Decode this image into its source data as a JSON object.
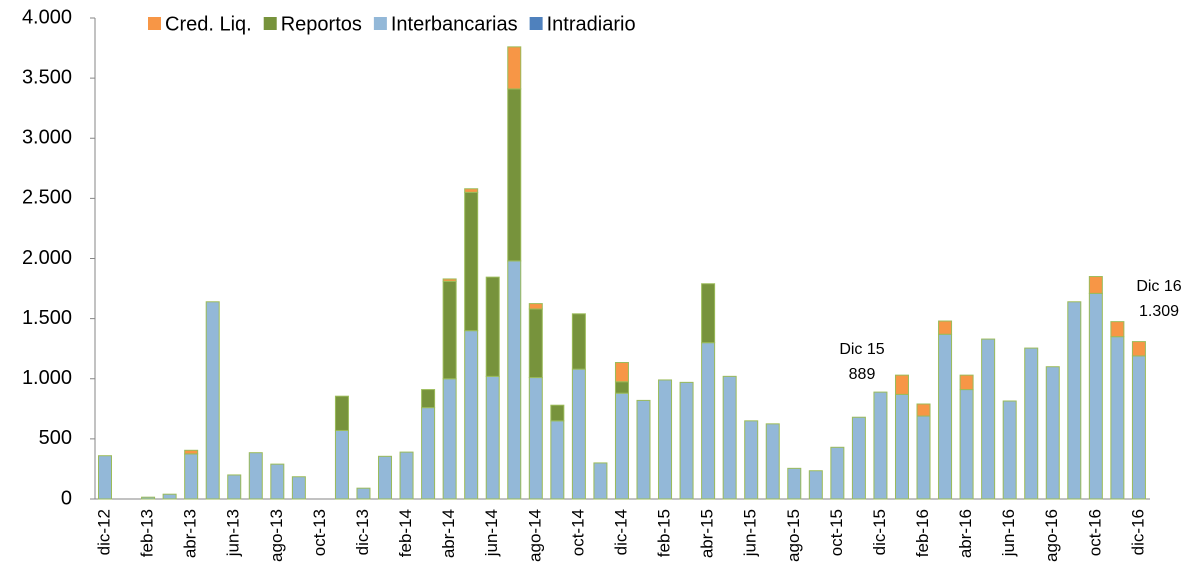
{
  "chart_data": {
    "type": "stacked_bar",
    "categories": [
      "dic-12",
      null,
      "feb-13",
      null,
      "abr-13",
      null,
      "jun-13",
      null,
      "ago-13",
      null,
      "oct-13",
      null,
      "dic-13",
      null,
      "feb-14",
      null,
      "abr-14",
      null,
      "jun-14",
      null,
      "ago-14",
      null,
      "oct-14",
      null,
      "dic-14",
      null,
      "feb-15",
      null,
      "abr-15",
      null,
      "jun-15",
      null,
      "ago-15",
      null,
      "oct-15",
      null,
      "dic-15",
      null,
      "feb-16",
      null,
      "abr-16",
      null,
      "jun-16",
      null,
      "ago-16",
      null,
      "oct-16",
      null,
      "dic-16"
    ],
    "series": [
      {
        "name": "Cred. Liq.",
        "color": "#f79646",
        "values": [
          0,
          0,
          0,
          0,
          30,
          0,
          0,
          0,
          0,
          0,
          0,
          0,
          0,
          0,
          0,
          0,
          20,
          30,
          0,
          350,
          45,
          0,
          0,
          0,
          160,
          0,
          0,
          0,
          0,
          0,
          0,
          0,
          0,
          0,
          0,
          0,
          0,
          160,
          100,
          110,
          120,
          0,
          0,
          0,
          0,
          0,
          140,
          125,
          119
        ]
      },
      {
        "name": "Reportos",
        "color": "#77933c",
        "values": [
          0,
          0,
          0,
          0,
          0,
          0,
          0,
          0,
          0,
          0,
          0,
          285,
          0,
          0,
          0,
          150,
          810,
          1150,
          825,
          1430,
          570,
          130,
          460,
          0,
          95,
          0,
          0,
          0,
          490,
          0,
          0,
          0,
          0,
          0,
          0,
          0,
          0,
          0,
          0,
          0,
          0,
          0,
          0,
          0,
          0,
          0,
          0,
          0,
          0
        ]
      },
      {
        "name": "Interbancarias",
        "color": "#93b8d8",
        "values": [
          360,
          0,
          15,
          40,
          375,
          1640,
          200,
          385,
          290,
          185,
          0,
          570,
          90,
          355,
          390,
          760,
          1000,
          1400,
          1020,
          1980,
          1010,
          650,
          1080,
          300,
          880,
          820,
          990,
          970,
          1300,
          1020,
          650,
          625,
          255,
          235,
          430,
          680,
          889,
          870,
          690,
          1370,
          910,
          1330,
          815,
          1255,
          1100,
          1640,
          1710,
          1350,
          1190
        ]
      },
      {
        "name": "Intradiario",
        "color": "#4f81bd",
        "values": [
          0,
          0,
          0,
          0,
          0,
          0,
          0,
          0,
          0,
          0,
          0,
          0,
          0,
          0,
          0,
          0,
          0,
          0,
          0,
          0,
          0,
          0,
          0,
          0,
          0,
          0,
          0,
          0,
          0,
          0,
          0,
          0,
          0,
          0,
          0,
          0,
          0,
          0,
          0,
          0,
          0,
          0,
          0,
          0,
          0,
          0,
          0,
          0,
          0
        ]
      }
    ],
    "ylim": [
      0,
      4000
    ],
    "yticks": [
      0,
      500,
      {
        "value": 1000,
        "label": "1.000"
      },
      {
        "value": 1500,
        "label": "1.500"
      },
      {
        "value": 2000,
        "label": "2.000"
      },
      {
        "value": 2500,
        "label": "2.500"
      },
      {
        "value": 3000,
        "label": "3.000"
      },
      {
        "value": 3500,
        "label": "3.500"
      },
      {
        "value": 4000,
        "label": "4.000"
      }
    ],
    "annotations": [
      [
        "Dic 15",
        "889"
      ],
      [
        "Dic 16",
        "1.309"
      ]
    ],
    "bar_edge_color": "#9bbb59",
    "grid": false
  }
}
